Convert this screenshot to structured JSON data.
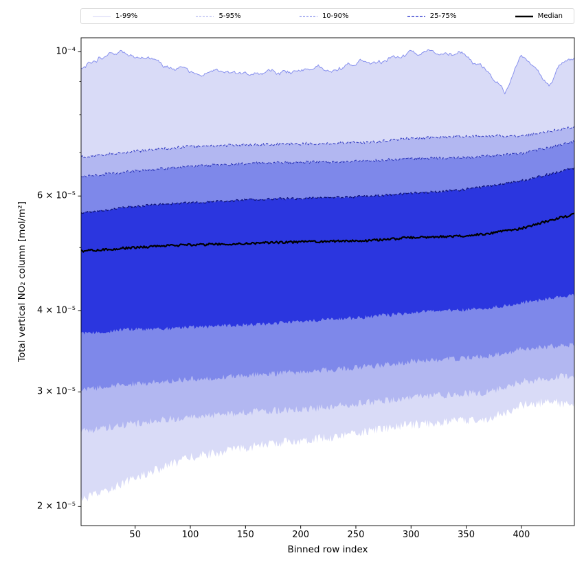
{
  "figure": {
    "background": "#ffffff"
  },
  "legend": {
    "items": [
      {
        "label": "1-99%",
        "color": "#d9dbf7",
        "dash": "",
        "width": 1.2
      },
      {
        "label": "5-95%",
        "color": "#b2b7f1",
        "dash": "3 2",
        "width": 1.2
      },
      {
        "label": "10-90%",
        "color": "#7e88ea",
        "dash": "3 2",
        "width": 1.2
      },
      {
        "label": "25-75%",
        "color": "#3a43d0",
        "dash": "4 2",
        "width": 1.5
      },
      {
        "label": "Median",
        "color": "#000000",
        "dash": "",
        "width": 2.5
      }
    ]
  },
  "chart_data": {
    "type": "area",
    "title": "",
    "xlabel": "Binned row index",
    "ylabel": "Total vertical NO₂ column [mol/m²]",
    "x_range": [
      1,
      448
    ],
    "y_scale": "log",
    "y_range": [
      1.87e-05,
      0.000105
    ],
    "x_ticks": [
      50,
      100,
      150,
      200,
      250,
      300,
      350,
      400
    ],
    "y_ticks": [
      {
        "value": 0.0001,
        "label": "10⁻⁴"
      },
      {
        "value": 6e-05,
        "label": "6 × 10⁻⁵"
      },
      {
        "value": 4e-05,
        "label": "4 × 10⁻⁵"
      },
      {
        "value": 3e-05,
        "label": "3 × 10⁻⁵"
      },
      {
        "value": 2e-05,
        "label": "2 × 10⁻⁵"
      }
    ],
    "y_minor_ticks": [
      5e-05,
      7e-05,
      8e-05,
      9e-05
    ],
    "grid": false,
    "legend_position": "top-outside",
    "x_control": [
      1,
      20,
      40,
      70,
      100,
      130,
      160,
      200,
      230,
      260,
      300,
      330,
      345,
      365,
      385,
      400,
      412,
      425,
      437,
      448
    ],
    "series": [
      {
        "name": "p1",
        "percentile": 1,
        "noise_amp": 0.016,
        "noise_smooth": 0,
        "values": [
          2.05e-05,
          2.1e-05,
          2.18e-05,
          2.28e-05,
          2.38e-05,
          2.43e-05,
          2.48e-05,
          2.53e-05,
          2.56e-05,
          2.61e-05,
          2.67e-05,
          2.7e-05,
          2.71e-05,
          2.72e-05,
          2.78e-05,
          2.86e-05,
          2.88e-05,
          2.9e-05,
          2.88e-05,
          2.86e-05
        ]
      },
      {
        "name": "p5",
        "percentile": 5,
        "noise_amp": 0.013,
        "noise_smooth": 0,
        "values": [
          2.61e-05,
          2.64e-05,
          2.67e-05,
          2.71e-05,
          2.75e-05,
          2.77e-05,
          2.8e-05,
          2.82e-05,
          2.85e-05,
          2.89e-05,
          2.94e-05,
          2.97e-05,
          2.98e-05,
          2.99e-05,
          3.05e-05,
          3.11e-05,
          3.13e-05,
          3.15e-05,
          3.17e-05,
          3.18e-05
        ]
      },
      {
        "name": "p10",
        "percentile": 10,
        "noise_amp": 0.01,
        "noise_smooth": 0,
        "values": [
          3.02e-05,
          3.05e-05,
          3.08e-05,
          3.11e-05,
          3.14e-05,
          3.16e-05,
          3.19e-05,
          3.22e-05,
          3.25e-05,
          3.28e-05,
          3.34e-05,
          3.37e-05,
          3.38e-05,
          3.4e-05,
          3.44e-05,
          3.49e-05,
          3.5e-05,
          3.52e-05,
          3.54e-05,
          3.55e-05
        ]
      },
      {
        "name": "p25",
        "percentile": 25,
        "noise_amp": 0.007,
        "noise_smooth": 0,
        "values": [
          3.69e-05,
          3.71e-05,
          3.74e-05,
          3.75e-05,
          3.77e-05,
          3.79e-05,
          3.81e-05,
          3.85e-05,
          3.88e-05,
          3.91e-05,
          3.97e-05,
          4e-05,
          4.01e-05,
          4.03e-05,
          4.07e-05,
          4.12e-05,
          4.14e-05,
          4.17e-05,
          4.2e-05,
          4.22e-05
        ]
      },
      {
        "name": "median",
        "percentile": 50,
        "noise_amp": 0.004,
        "noise_smooth": 0,
        "values": [
          4.94e-05,
          4.96e-05,
          4.99e-05,
          5.02e-05,
          5.05e-05,
          5.06e-05,
          5.08e-05,
          5.1e-05,
          5.11e-05,
          5.12e-05,
          5.18e-05,
          5.2e-05,
          5.21e-05,
          5.24e-05,
          5.3e-05,
          5.35e-05,
          5.42e-05,
          5.5e-05,
          5.57e-05,
          5.62e-05
        ]
      },
      {
        "name": "p75",
        "percentile": 75,
        "noise_amp": 0.004,
        "noise_smooth": 0,
        "values": [
          5.65e-05,
          5.7e-05,
          5.76e-05,
          5.82e-05,
          5.86e-05,
          5.89e-05,
          5.93e-05,
          5.95e-05,
          5.97e-05,
          5.99e-05,
          6.06e-05,
          6.1e-05,
          6.13e-05,
          6.2e-05,
          6.27e-05,
          6.33e-05,
          6.4e-05,
          6.48e-05,
          6.56e-05,
          6.63e-05
        ]
      },
      {
        "name": "p90",
        "percentile": 90,
        "noise_amp": 0.0045,
        "noise_smooth": 0,
        "values": [
          6.42e-05,
          6.47e-05,
          6.53e-05,
          6.6e-05,
          6.66e-05,
          6.7e-05,
          6.74e-05,
          6.76e-05,
          6.77e-05,
          6.79e-05,
          6.85e-05,
          6.86e-05,
          6.87e-05,
          6.9e-05,
          6.94e-05,
          6.98e-05,
          7.04e-05,
          7.12e-05,
          7.2e-05,
          7.28e-05
        ]
      },
      {
        "name": "p95",
        "percentile": 95,
        "noise_amp": 0.005,
        "noise_smooth": 0,
        "values": [
          6.89e-05,
          6.94e-05,
          7e-05,
          7.08e-05,
          7.15e-05,
          7.17e-05,
          7.2e-05,
          7.22e-05,
          7.23e-05,
          7.25e-05,
          7.36e-05,
          7.4e-05,
          7.41e-05,
          7.42e-05,
          7.42e-05,
          7.42e-05,
          7.47e-05,
          7.55e-05,
          7.61e-05,
          7.66e-05
        ]
      },
      {
        "name": "p99",
        "percentile": 99,
        "noise_amp": 0.014,
        "noise_smooth": 3,
        "values": [
          9.4e-05,
          9.7e-05,
          0.0001,
          9.55e-05,
          9.2e-05,
          9.35e-05,
          9.3e-05,
          9.3e-05,
          9.4e-05,
          9.6e-05,
          9.9e-05,
          9.95e-05,
          0.0001,
          9.5e-05,
          8.7e-05,
          9.9e-05,
          9.4e-05,
          9e-05,
          9.55e-05,
          9.8e-05
        ]
      }
    ],
    "bands": [
      {
        "label": "1-99%",
        "lower": "p1",
        "upper": "p99",
        "fill": "#d9dbf7"
      },
      {
        "label": "5-95%",
        "lower": "p5",
        "upper": "p95",
        "fill": "#b2b7f1"
      },
      {
        "label": "10-90%",
        "lower": "p10",
        "upper": "p90",
        "fill": "#7e88ea"
      },
      {
        "label": "25-75%",
        "lower": "p25",
        "upper": "p75",
        "fill": "#2b36df"
      }
    ],
    "lines": [
      {
        "series": "p99",
        "color": "#8891ee",
        "width": 1,
        "dash": ""
      },
      {
        "series": "p95",
        "color": "#2e37c0",
        "width": 1,
        "dash": "4 2.5"
      },
      {
        "series": "p90",
        "color": "#2730b4",
        "width": 1,
        "dash": "4 2.5"
      },
      {
        "series": "p75",
        "color": "#0f1478",
        "width": 1.3,
        "dash": "5 2.5"
      },
      {
        "series": "median",
        "color": "#000000",
        "width": 2.2,
        "dash": ""
      }
    ]
  }
}
